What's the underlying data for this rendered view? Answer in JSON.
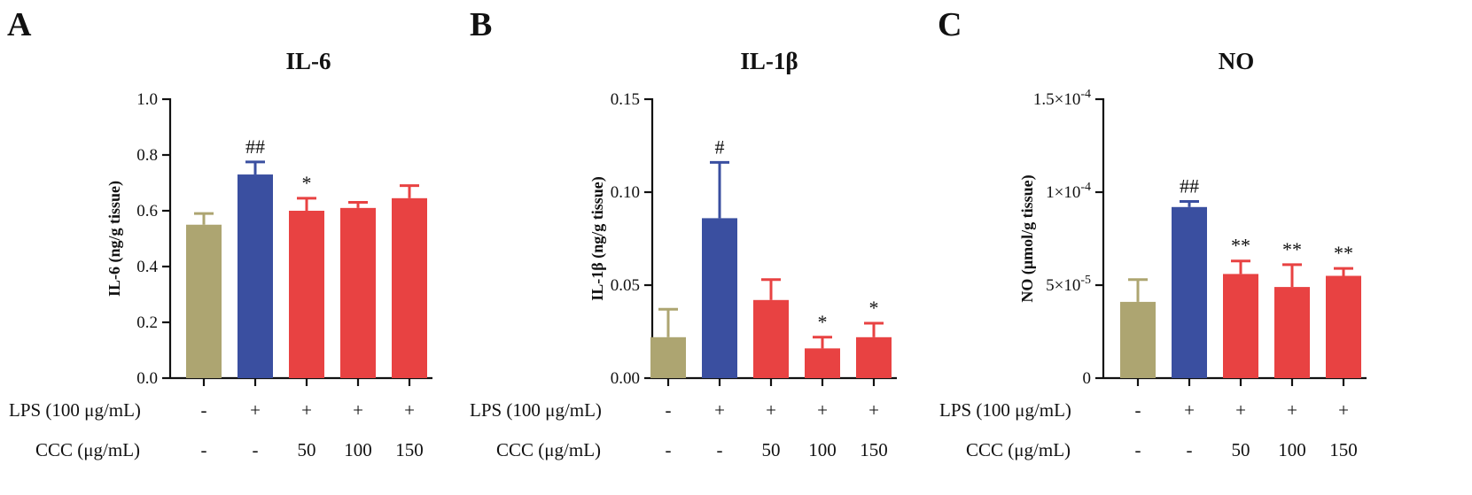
{
  "colors": {
    "control": "#ada571",
    "model": "#3a4fa0",
    "treatment": "#e84242"
  },
  "chart_data": [
    {
      "type": "bar",
      "panel_letter": "A",
      "title": "IL-6",
      "ylabel": "IL-6 (ng/g tissue)",
      "ylim": [
        0,
        1.0
      ],
      "yticks": [
        {
          "value": 0.0,
          "label": "0.0"
        },
        {
          "value": 0.2,
          "label": "0.2"
        },
        {
          "value": 0.4,
          "label": "0.4"
        },
        {
          "value": 0.6,
          "label": "0.6"
        },
        {
          "value": 0.8,
          "label": "0.8"
        },
        {
          "value": 1.0,
          "label": "1.0"
        }
      ],
      "bars": [
        {
          "value": 0.55,
          "error": 0.04,
          "color_key": "control",
          "sig": ""
        },
        {
          "value": 0.73,
          "error": 0.045,
          "color_key": "model",
          "sig": "##"
        },
        {
          "value": 0.6,
          "error": 0.045,
          "color_key": "treatment",
          "sig": "*"
        },
        {
          "value": 0.61,
          "error": 0.02,
          "color_key": "treatment",
          "sig": ""
        },
        {
          "value": 0.645,
          "error": 0.045,
          "color_key": "treatment",
          "sig": ""
        }
      ],
      "lps_label": "LPS (100 μg/mL)",
      "lps": [
        "-",
        "+",
        "+",
        "+",
        "+"
      ],
      "ccc_label": "CCC (μg/mL)",
      "ccc": [
        "-",
        "-",
        "50",
        "100",
        "150"
      ]
    },
    {
      "type": "bar",
      "panel_letter": "B",
      "title": "IL-1β",
      "ylabel": "IL-1β (ng/g tissue)",
      "ylim": [
        0,
        0.15
      ],
      "yticks": [
        {
          "value": 0.0,
          "label": "0.00"
        },
        {
          "value": 0.05,
          "label": "0.05"
        },
        {
          "value": 0.1,
          "label": "0.10"
        },
        {
          "value": 0.15,
          "label": "0.15"
        }
      ],
      "bars": [
        {
          "value": 0.022,
          "error": 0.015,
          "color_key": "control",
          "sig": ""
        },
        {
          "value": 0.086,
          "error": 0.03,
          "color_key": "model",
          "sig": "#"
        },
        {
          "value": 0.042,
          "error": 0.011,
          "color_key": "treatment",
          "sig": ""
        },
        {
          "value": 0.016,
          "error": 0.006,
          "color_key": "treatment",
          "sig": "*"
        },
        {
          "value": 0.022,
          "error": 0.0075,
          "color_key": "treatment",
          "sig": "*"
        }
      ],
      "lps_label": "LPS (100 μg/mL)",
      "lps": [
        "-",
        "+",
        "+",
        "+",
        "+"
      ],
      "ccc_label": "CCC (μg/mL)",
      "ccc": [
        "-",
        "-",
        "50",
        "100",
        "150"
      ]
    },
    {
      "type": "bar",
      "panel_letter": "C",
      "title": "NO",
      "ylabel": "NO (μmol/g tissue)",
      "ylim": [
        0,
        0.00015
      ],
      "yticks": [
        {
          "value": 0,
          "label": "0"
        },
        {
          "value": 5e-05,
          "label": "5×10",
          "exp": "-5"
        },
        {
          "value": 0.0001,
          "label": "1×10",
          "exp": "-4"
        },
        {
          "value": 0.00015,
          "label": "1.5×10",
          "exp": "-4"
        }
      ],
      "bars": [
        {
          "value": 4.1e-05,
          "error": 1.2e-05,
          "color_key": "control",
          "sig": ""
        },
        {
          "value": 9.2e-05,
          "error": 3e-06,
          "color_key": "model",
          "sig": "##"
        },
        {
          "value": 5.6e-05,
          "error": 7e-06,
          "color_key": "treatment",
          "sig": "**"
        },
        {
          "value": 4.9e-05,
          "error": 1.2e-05,
          "color_key": "treatment",
          "sig": "**"
        },
        {
          "value": 5.5e-05,
          "error": 4e-06,
          "color_key": "treatment",
          "sig": "**"
        }
      ],
      "lps_label": "LPS (100 μg/mL)",
      "lps": [
        "-",
        "+",
        "+",
        "+",
        "+"
      ],
      "ccc_label": "CCC (μg/mL)",
      "ccc": [
        "-",
        "-",
        "50",
        "100",
        "150"
      ]
    }
  ]
}
